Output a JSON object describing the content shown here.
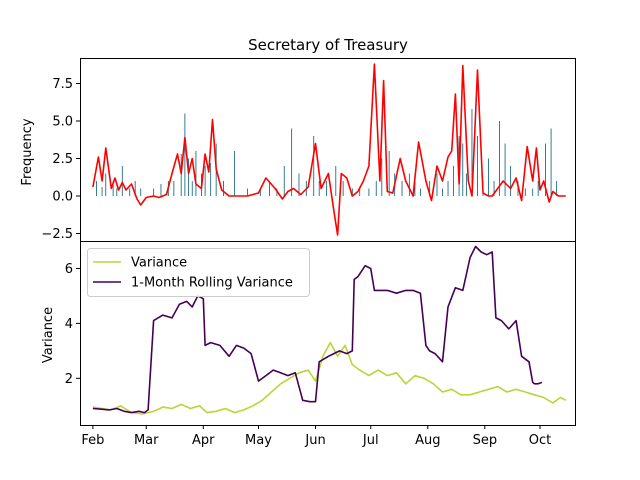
{
  "chart_data": [
    {
      "type": "line",
      "title": "Secretary of Treasury",
      "xlabel": "",
      "ylabel": "Frequency",
      "ylim": [
        -3.0,
        9.2
      ],
      "yticks": [
        -2.5,
        0.0,
        2.5,
        5.0,
        7.5
      ],
      "ytick_labels": [
        "−2.5",
        "0.0",
        "2.5",
        "5.0",
        "7.5"
      ],
      "grid": false,
      "colors": {
        "bars": "#1f6f8b",
        "line": "#ff0000"
      },
      "bars": {
        "x": [
          "2024-02-03",
          "2024-02-06",
          "2024-02-08",
          "2024-02-12",
          "2024-02-14",
          "2024-02-17",
          "2024-02-21",
          "2024-02-24",
          "2024-02-27",
          "2024-03-05",
          "2024-03-09",
          "2024-03-13",
          "2024-03-16",
          "2024-03-20",
          "2024-03-22",
          "2024-03-24",
          "2024-03-26",
          "2024-03-28",
          "2024-03-31",
          "2024-04-02",
          "2024-04-05",
          "2024-04-08",
          "2024-04-12",
          "2024-04-18",
          "2024-04-25",
          "2024-05-02",
          "2024-05-07",
          "2024-05-11",
          "2024-05-15",
          "2024-05-19",
          "2024-05-23",
          "2024-05-27",
          "2024-05-31",
          "2024-06-03",
          "2024-06-07",
          "2024-06-12",
          "2024-06-16",
          "2024-06-21",
          "2024-06-25",
          "2024-06-30",
          "2024-07-04",
          "2024-07-07",
          "2024-07-11",
          "2024-07-14",
          "2024-07-18",
          "2024-07-22",
          "2024-07-25",
          "2024-07-28",
          "2024-08-02",
          "2024-08-06",
          "2024-08-09",
          "2024-08-12",
          "2024-08-15",
          "2024-08-18",
          "2024-08-20",
          "2024-08-22",
          "2024-08-25",
          "2024-08-28",
          "2024-08-31",
          "2024-09-03",
          "2024-09-06",
          "2024-09-09",
          "2024-09-12",
          "2024-09-15",
          "2024-09-19",
          "2024-09-23",
          "2024-09-27",
          "2024-09-30",
          "2024-10-04",
          "2024-10-07",
          "2024-10-10"
        ],
        "values": [
          1.0,
          0.6,
          1.5,
          1.0,
          0.5,
          2.0,
          0.5,
          1.0,
          0.5,
          0.5,
          0.8,
          1.0,
          1.0,
          2.8,
          5.5,
          2.5,
          1.0,
          3.0,
          1.5,
          2.0,
          2.2,
          3.5,
          1.0,
          3.0,
          0.5,
          0.5,
          1.0,
          0.5,
          2.0,
          4.5,
          1.5,
          1.0,
          4.0,
          1.0,
          1.0,
          2.0,
          1.0,
          0.5,
          0.5,
          0.5,
          1.0,
          2.5,
          3.0,
          1.5,
          1.0,
          1.5,
          1.0,
          0.5,
          1.0,
          1.5,
          0.5,
          1.0,
          2.0,
          4.0,
          3.5,
          1.5,
          5.8,
          4.0,
          1.0,
          2.5,
          1.0,
          5.0,
          3.5,
          2.0,
          1.0,
          0.5,
          0.5,
          1.0,
          3.5,
          4.5,
          1.0
        ]
      },
      "line": {
        "x": [
          "2024-02-01",
          "2024-02-04",
          "2024-02-06",
          "2024-02-08",
          "2024-02-11",
          "2024-02-13",
          "2024-02-15",
          "2024-02-17",
          "2024-02-19",
          "2024-02-22",
          "2024-02-25",
          "2024-02-27",
          "2024-03-01",
          "2024-03-05",
          "2024-03-08",
          "2024-03-12",
          "2024-03-15",
          "2024-03-18",
          "2024-03-20",
          "2024-03-22",
          "2024-03-24",
          "2024-03-26",
          "2024-03-28",
          "2024-03-31",
          "2024-04-02",
          "2024-04-04",
          "2024-04-06",
          "2024-04-08",
          "2024-04-11",
          "2024-04-15",
          "2024-04-20",
          "2024-04-25",
          "2024-05-01",
          "2024-05-05",
          "2024-05-10",
          "2024-05-14",
          "2024-05-17",
          "2024-05-20",
          "2024-05-24",
          "2024-05-28",
          "2024-06-01",
          "2024-06-04",
          "2024-06-08",
          "2024-06-11",
          "2024-06-13",
          "2024-06-15",
          "2024-06-18",
          "2024-06-21",
          "2024-06-24",
          "2024-06-27",
          "2024-06-30",
          "2024-07-03",
          "2024-07-06",
          "2024-07-08",
          "2024-07-10",
          "2024-07-13",
          "2024-07-17",
          "2024-07-20",
          "2024-07-24",
          "2024-07-27",
          "2024-07-31",
          "2024-08-03",
          "2024-08-06",
          "2024-08-09",
          "2024-08-12",
          "2024-08-14",
          "2024-08-16",
          "2024-08-18",
          "2024-08-20",
          "2024-08-23",
          "2024-08-25",
          "2024-08-28",
          "2024-08-31",
          "2024-09-03",
          "2024-09-05",
          "2024-09-08",
          "2024-09-11",
          "2024-09-15",
          "2024-09-18",
          "2024-09-21",
          "2024-09-24",
          "2024-09-27",
          "2024-09-29",
          "2024-10-01",
          "2024-10-03",
          "2024-10-06",
          "2024-10-08",
          "2024-10-11",
          "2024-10-15"
        ],
        "values": [
          0.6,
          2.6,
          1.0,
          3.2,
          0.5,
          1.2,
          0.4,
          0.9,
          0.4,
          0.8,
          -0.2,
          -0.6,
          -0.1,
          0.0,
          -0.1,
          0.1,
          1.5,
          2.8,
          1.5,
          3.9,
          1.5,
          2.5,
          0.8,
          0.5,
          2.8,
          1.6,
          5.1,
          1.8,
          0.4,
          0.0,
          0.0,
          0.0,
          0.2,
          1.2,
          0.5,
          -0.2,
          0.3,
          0.5,
          0.1,
          0.6,
          3.5,
          0.5,
          1.5,
          -1.0,
          -2.6,
          1.5,
          1.2,
          0.0,
          0.3,
          1.0,
          2.0,
          8.8,
          1.0,
          7.7,
          0.3,
          0.2,
          2.5,
          1.0,
          0.0,
          3.6,
          1.0,
          -0.3,
          2.0,
          1.0,
          2.6,
          3.0,
          6.8,
          0.8,
          8.7,
          1.0,
          0.0,
          8.4,
          0.2,
          0.0,
          0.0,
          0.5,
          1.0,
          0.5,
          1.2,
          -0.3,
          3.3,
          1.0,
          3.2,
          0.4,
          1.0,
          -0.4,
          0.3,
          0.0,
          0.0
        ]
      }
    },
    {
      "type": "line",
      "title": "",
      "xlabel": "",
      "ylabel": "Variance",
      "ylim": [
        0.3,
        7.0
      ],
      "yticks": [
        2,
        4,
        6
      ],
      "ytick_labels": [
        "2",
        "4",
        "6"
      ],
      "x_ticks": [
        "Feb",
        "Mar",
        "Apr",
        "May",
        "Jun",
        "Jul",
        "Aug",
        "Sep",
        "Oct"
      ],
      "legend_position": "upper-left",
      "grid": false,
      "series": [
        {
          "name": "Variance",
          "color": "#bcd33a",
          "x": [
            "2024-02-01",
            "2024-02-06",
            "2024-02-11",
            "2024-02-16",
            "2024-02-22",
            "2024-02-28",
            "2024-03-05",
            "2024-03-10",
            "2024-03-15",
            "2024-03-20",
            "2024-03-25",
            "2024-03-30",
            "2024-04-03",
            "2024-04-08",
            "2024-04-13",
            "2024-04-18",
            "2024-04-23",
            "2024-04-28",
            "2024-05-03",
            "2024-05-08",
            "2024-05-13",
            "2024-05-18",
            "2024-05-23",
            "2024-05-28",
            "2024-06-01",
            "2024-06-05",
            "2024-06-09",
            "2024-06-13",
            "2024-06-17",
            "2024-06-21",
            "2024-06-25",
            "2024-06-30",
            "2024-07-05",
            "2024-07-10",
            "2024-07-15",
            "2024-07-20",
            "2024-07-25",
            "2024-07-30",
            "2024-08-04",
            "2024-08-09",
            "2024-08-14",
            "2024-08-19",
            "2024-08-24",
            "2024-08-29",
            "2024-09-03",
            "2024-09-08",
            "2024-09-13",
            "2024-09-18",
            "2024-09-23",
            "2024-09-28",
            "2024-10-03",
            "2024-10-08",
            "2024-10-12",
            "2024-10-15"
          ],
          "values": [
            0.95,
            0.9,
            0.85,
            1.0,
            0.75,
            0.7,
            0.8,
            0.95,
            0.9,
            1.05,
            0.9,
            1.0,
            0.75,
            0.8,
            0.9,
            0.75,
            0.85,
            1.0,
            1.2,
            1.5,
            1.8,
            2.0,
            2.2,
            2.3,
            1.9,
            2.8,
            3.3,
            2.8,
            3.2,
            2.5,
            2.3,
            2.1,
            2.3,
            2.1,
            2.2,
            1.8,
            2.1,
            2.0,
            1.8,
            1.5,
            1.6,
            1.4,
            1.4,
            1.5,
            1.6,
            1.7,
            1.5,
            1.6,
            1.5,
            1.4,
            1.3,
            1.1,
            1.3,
            1.2
          ]
        },
        {
          "name": "1-Month Rolling Variance",
          "color": "#440154",
          "x": [
            "2024-02-01",
            "2024-02-05",
            "2024-02-10",
            "2024-02-14",
            "2024-02-18",
            "2024-02-22",
            "2024-02-26",
            "2024-02-29",
            "2024-03-02",
            "2024-03-05",
            "2024-03-10",
            "2024-03-15",
            "2024-03-19",
            "2024-03-23",
            "2024-03-26",
            "2024-03-29",
            "2024-04-01",
            "2024-04-02",
            "2024-04-05",
            "2024-04-10",
            "2024-04-15",
            "2024-04-19",
            "2024-04-23",
            "2024-04-27",
            "2024-05-01",
            "2024-05-05",
            "2024-05-09",
            "2024-05-13",
            "2024-05-17",
            "2024-05-21",
            "2024-05-25",
            "2024-05-29",
            "2024-06-01",
            "2024-06-03",
            "2024-06-08",
            "2024-06-11",
            "2024-06-14",
            "2024-06-18",
            "2024-06-21",
            "2024-06-22",
            "2024-06-24",
            "2024-06-28",
            "2024-07-01",
            "2024-07-03",
            "2024-07-06",
            "2024-07-10",
            "2024-07-15",
            "2024-07-20",
            "2024-07-24",
            "2024-07-28",
            "2024-07-31",
            "2024-08-02",
            "2024-08-05",
            "2024-08-09",
            "2024-08-12",
            "2024-08-16",
            "2024-08-20",
            "2024-08-24",
            "2024-08-27",
            "2024-08-30",
            "2024-09-02",
            "2024-09-05",
            "2024-09-07",
            "2024-09-10",
            "2024-09-14",
            "2024-09-18",
            "2024-09-21",
            "2024-09-25",
            "2024-09-27",
            "2024-09-28",
            "2024-09-30",
            "2024-10-02"
          ],
          "values": [
            0.9,
            0.88,
            0.85,
            0.9,
            0.8,
            0.75,
            0.8,
            0.75,
            0.85,
            4.1,
            4.3,
            4.2,
            4.7,
            4.8,
            4.6,
            5.0,
            4.9,
            3.2,
            3.3,
            3.2,
            2.8,
            3.2,
            3.1,
            2.9,
            1.9,
            2.1,
            2.3,
            2.2,
            2.1,
            2.2,
            1.2,
            1.15,
            1.15,
            2.6,
            2.8,
            2.9,
            3.0,
            2.9,
            3.0,
            5.6,
            5.7,
            6.1,
            6.0,
            5.2,
            5.2,
            5.2,
            5.1,
            5.2,
            5.2,
            5.1,
            3.2,
            3.0,
            2.9,
            2.6,
            4.6,
            5.3,
            5.2,
            6.4,
            6.8,
            6.6,
            6.5,
            6.6,
            4.2,
            4.1,
            3.8,
            4.1,
            2.8,
            2.6,
            1.85,
            1.8,
            1.8,
            1.85
          ]
        }
      ]
    }
  ]
}
